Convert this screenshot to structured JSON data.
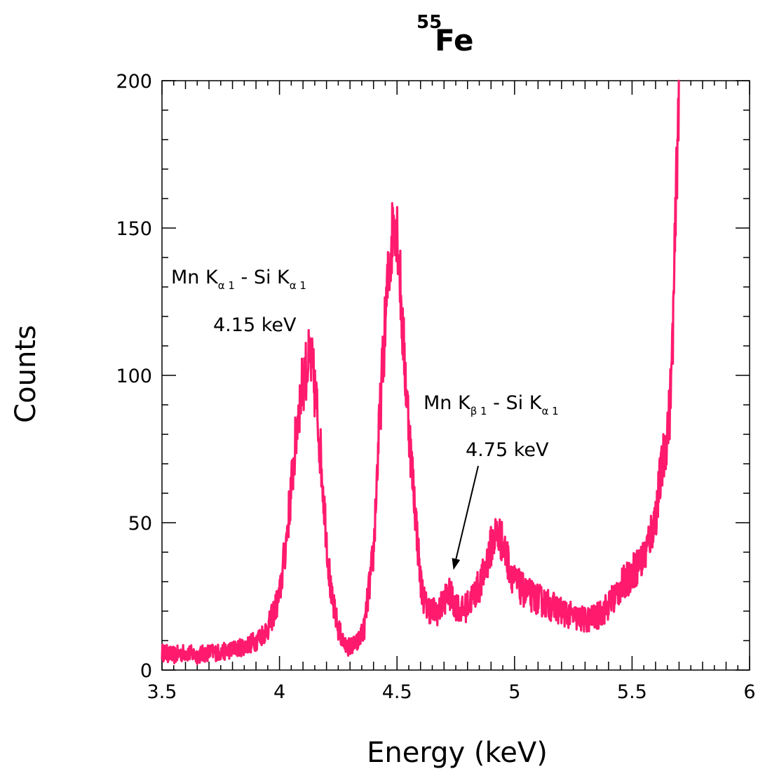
{
  "chart_data": {
    "type": "line",
    "title": {
      "superscript": "55",
      "main": "Fe"
    },
    "xlabel": "Energy (keV)",
    "ylabel": "Counts",
    "xlim": [
      3.5,
      6
    ],
    "ylim": [
      0,
      200
    ],
    "xticks": [
      3.5,
      4,
      4.5,
      5,
      5.5,
      6
    ],
    "xtick_labels": [
      "3.5",
      "4",
      "4.5",
      "5",
      "5.5",
      "6"
    ],
    "yticks": [
      0,
      50,
      100,
      150,
      200
    ],
    "ytick_labels": [
      "0",
      "50",
      "100",
      "150",
      "200"
    ],
    "grid": false,
    "legend": "none",
    "series": [
      {
        "color": "#ff1a6e",
        "x": [
          3.5,
          3.55,
          3.6,
          3.65,
          3.7,
          3.75,
          3.8,
          3.85,
          3.9,
          3.95,
          4.0,
          4.03,
          4.06,
          4.08,
          4.1,
          4.12,
          4.13,
          4.14,
          4.16,
          4.18,
          4.2,
          4.22,
          4.25,
          4.28,
          4.3,
          4.33,
          4.36,
          4.4,
          4.42,
          4.44,
          4.46,
          4.48,
          4.49,
          4.5,
          4.51,
          4.52,
          4.54,
          4.56,
          4.58,
          4.6,
          4.62,
          4.65,
          4.68,
          4.7,
          4.72,
          4.75,
          4.78,
          4.8,
          4.83,
          4.86,
          4.88,
          4.9,
          4.92,
          4.94,
          4.96,
          4.98,
          5.0,
          5.05,
          5.1,
          5.15,
          5.2,
          5.25,
          5.3,
          5.35,
          5.4,
          5.45,
          5.5,
          5.55,
          5.6,
          5.62,
          5.64,
          5.66,
          5.67,
          5.68,
          5.69,
          5.7
        ],
        "values": [
          6,
          5,
          6,
          5,
          6,
          6,
          7,
          8,
          10,
          14,
          25,
          45,
          70,
          88,
          98,
          104,
          105,
          102,
          88,
          68,
          45,
          25,
          14,
          8,
          8,
          9,
          14,
          40,
          75,
          105,
          130,
          148,
          155,
          150,
          138,
          120,
          95,
          72,
          52,
          30,
          22,
          20,
          20,
          24,
          26,
          22,
          20,
          22,
          26,
          30,
          36,
          42,
          46,
          45,
          40,
          35,
          30,
          26,
          24,
          22,
          20,
          18,
          17,
          18,
          22,
          28,
          33,
          38,
          52,
          65,
          75,
          88,
          105,
          135,
          170,
          200
        ]
      }
    ],
    "annotations": [
      {
        "line1_parts": [
          "Mn K",
          "α 1",
          " - Si K",
          "α 1"
        ],
        "line2": "4.15 keV"
      },
      {
        "line1_parts": [
          "Mn K",
          "β 1",
          " - Si K",
          "α 1"
        ],
        "line2": "4.75 keV",
        "arrow_to": [
          4.74,
          34
        ]
      }
    ]
  }
}
